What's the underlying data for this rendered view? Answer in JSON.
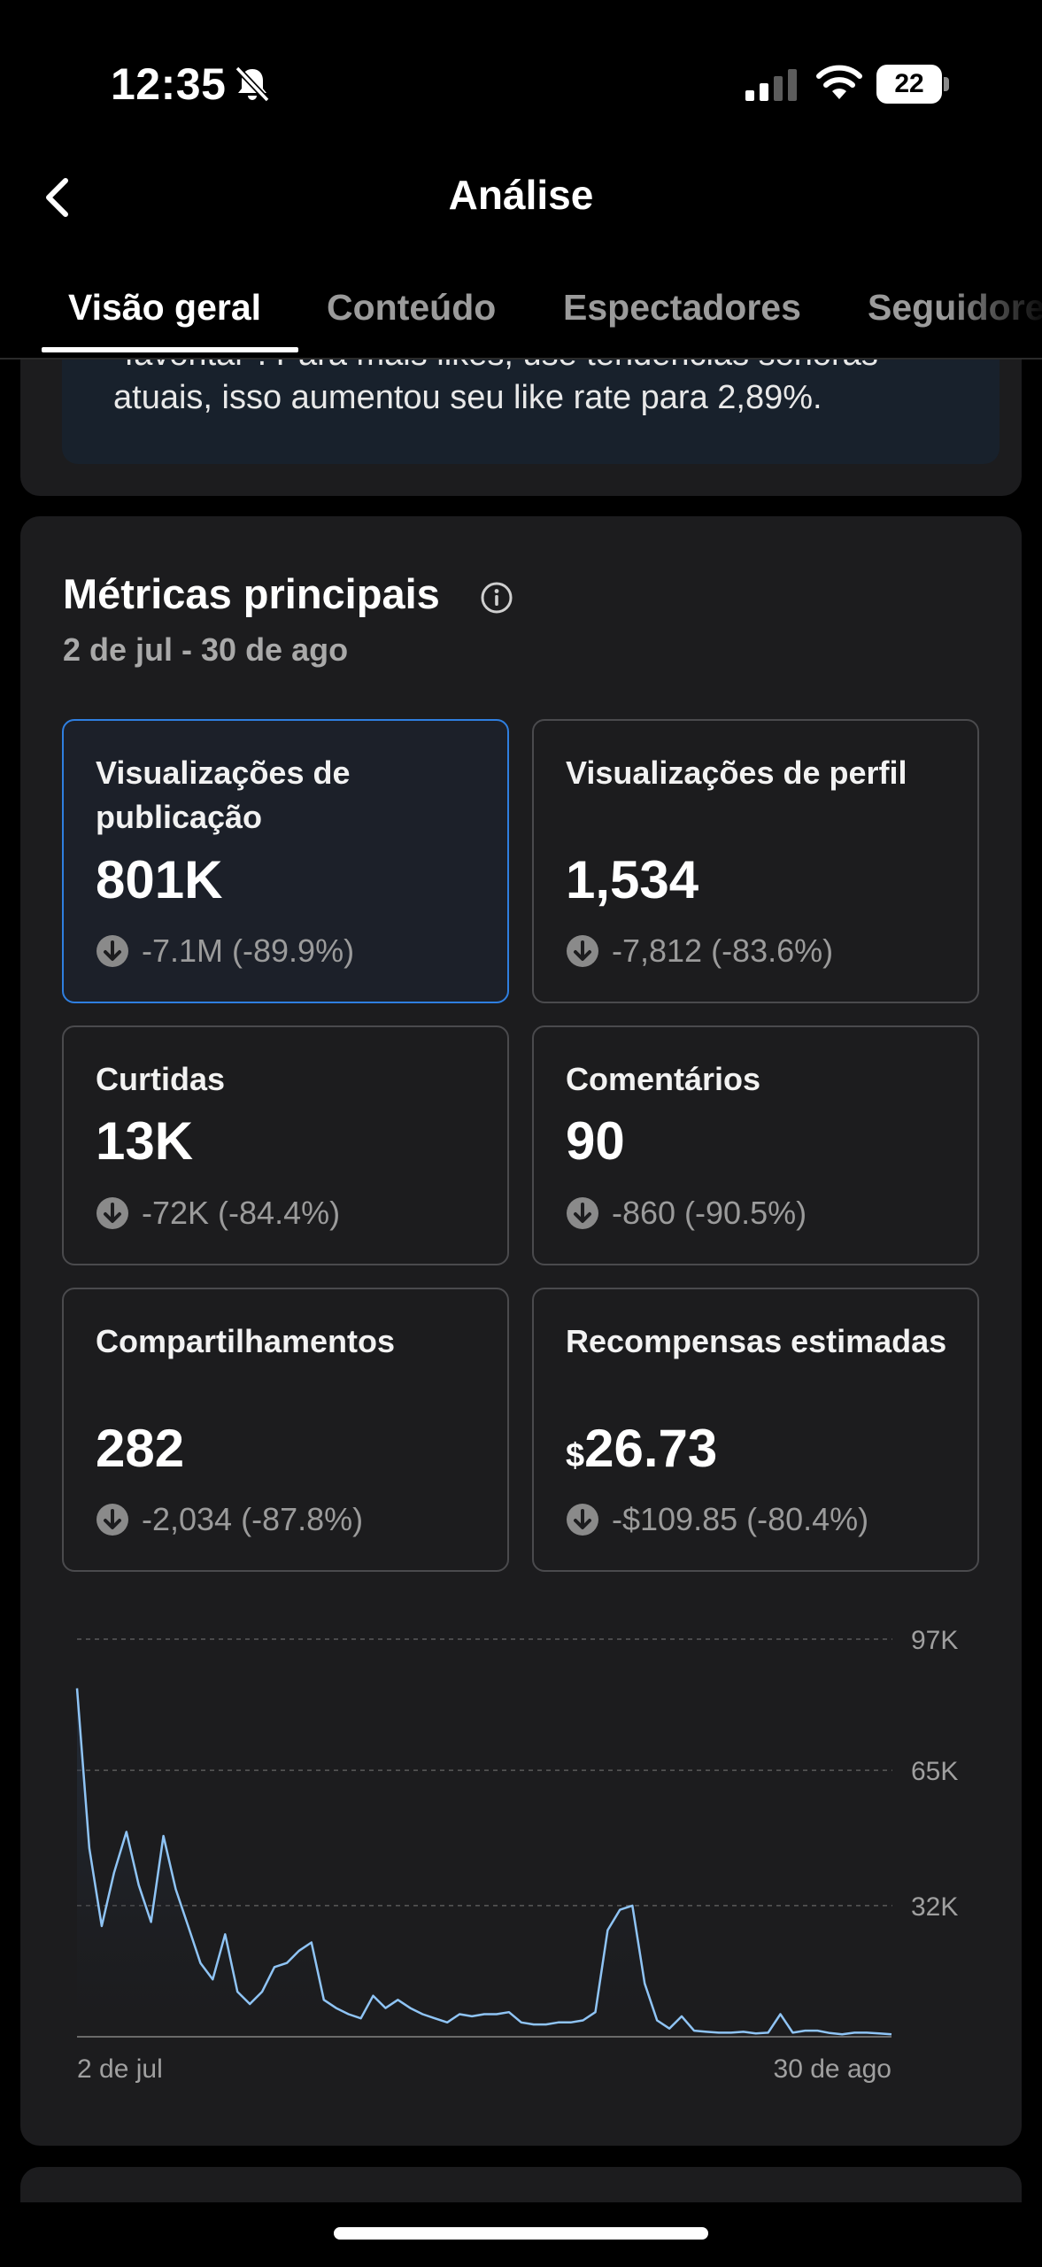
{
  "status": {
    "time": "12:35",
    "battery": "22",
    "icons": [
      "bell-muted-icon",
      "cellular-signal-icon",
      "wifi-icon",
      "battery-icon"
    ]
  },
  "header": {
    "title": "Análise",
    "back_icon": "chevron-left-icon"
  },
  "tabs": [
    {
      "label": "Visão geral",
      "active": true
    },
    {
      "label": "Conteúdo",
      "active": false
    },
    {
      "label": "Espectadores",
      "active": false
    },
    {
      "label": "Seguidores",
      "active": false
    }
  ],
  "insight": {
    "line1": "“favoritar”. Para mais likes, use tendências sonoras",
    "line2": "atuais, isso aumentou seu like rate para 2,89%."
  },
  "metrics": {
    "title": "Métricas principais",
    "info_icon": "info-circle-icon",
    "date_range": "2 de jul - 30 de ago",
    "tiles": [
      {
        "label": "Visualizações de publicação",
        "value": "801K",
        "change": "-7.1M (-89.9%)",
        "selected": true
      },
      {
        "label": "Visualizações de perfil",
        "value": "1,534",
        "change": "-7,812 (-83.6%)",
        "selected": false
      },
      {
        "label": "Curtidas",
        "value": "13K",
        "change": "-72K (-84.4%)",
        "selected": false
      },
      {
        "label": "Comentários",
        "value": "90",
        "change": "-860 (-90.5%)",
        "selected": false
      },
      {
        "label": "Compartilhamentos",
        "value": "282",
        "change": "-2,034 (-87.8%)",
        "selected": false
      },
      {
        "label": "Recompensas estimadas",
        "value_currency": "$",
        "value": "26.73",
        "change": "-$109.85 (-80.4%)",
        "selected": false
      }
    ]
  },
  "colors": {
    "background": "#000000",
    "card": "#1c1c1e",
    "selected_border": "#2f7fe0",
    "line": "#8fc4f5"
  },
  "chart_data": {
    "type": "area",
    "x_start_label": "2 de jul",
    "x_end_label": "30 de ago",
    "y_tick_labels": [
      "97K",
      "65K",
      "32K"
    ],
    "y_ticks": [
      97000,
      65000,
      32000
    ],
    "ylim": [
      0,
      97000
    ],
    "grid": true,
    "values": [
      85000,
      46000,
      27000,
      40000,
      50000,
      37000,
      28000,
      49000,
      36000,
      27000,
      18000,
      14000,
      25000,
      11000,
      8000,
      11000,
      17000,
      18000,
      21000,
      23000,
      9000,
      7000,
      5500,
      4500,
      10000,
      7000,
      9000,
      7000,
      5500,
      4500,
      3500,
      5500,
      5000,
      5500,
      5500,
      6000,
      3500,
      3000,
      3000,
      3500,
      3500,
      4000,
      6000,
      26000,
      31000,
      32000,
      13000,
      4000,
      2000,
      5000,
      1500,
      1200,
      1000,
      1000,
      1200,
      800,
      1000,
      5500,
      1000,
      1500,
      1500,
      900,
      600,
      1000,
      1000,
      800,
      600
    ]
  }
}
